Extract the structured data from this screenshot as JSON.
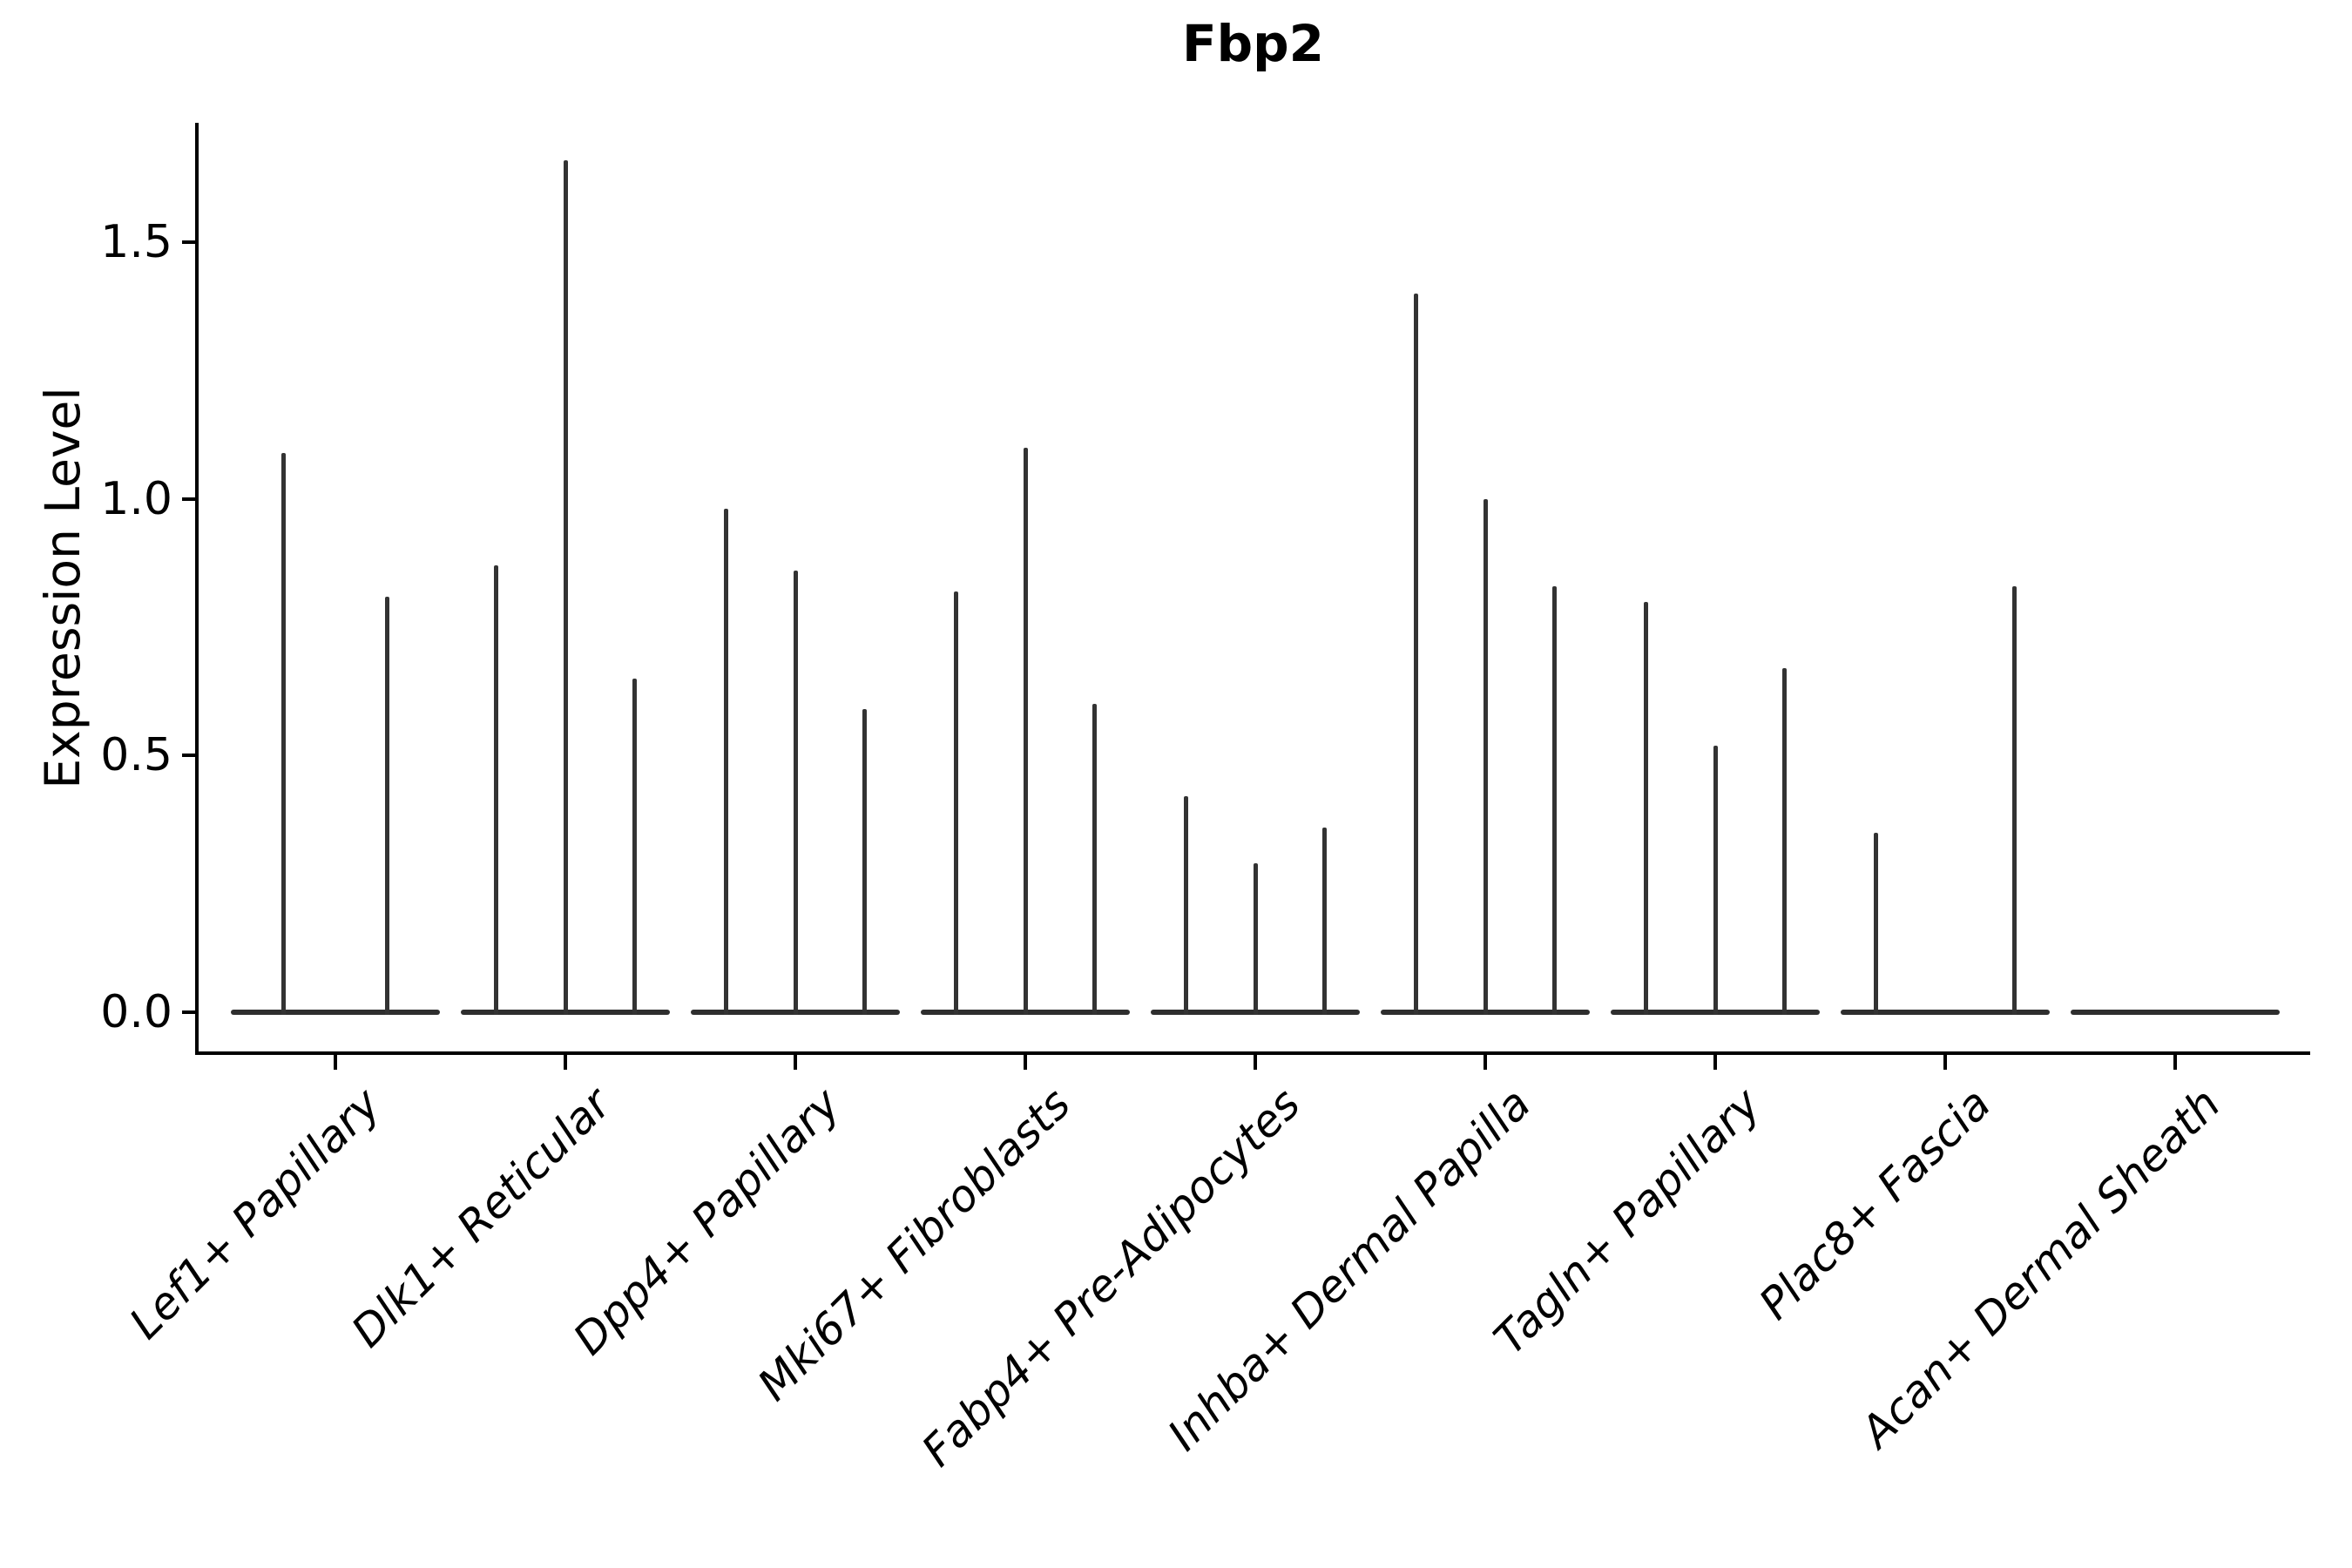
{
  "title": "Fbp2",
  "y_axis": {
    "label": "Expression Level",
    "tick_labels": [
      "0.0",
      "0.5",
      "1.0",
      "1.5"
    ],
    "tick_values": [
      0.0,
      0.5,
      1.0,
      1.5
    ]
  },
  "chart_data": {
    "type": "violin",
    "title": "Fbp2",
    "xlabel": "",
    "ylabel": "Expression Level",
    "ylim": [
      0,
      1.73
    ],
    "y_ticks": [
      0.0,
      0.5,
      1.0,
      1.5
    ],
    "grid": false,
    "legend": "none",
    "style_note": "collapsed single-cell expression violins: wide flat base at 0 with thin density spikes up to the max expressed value",
    "line_color": "#333333",
    "axis_color": "#000000",
    "categories": [
      "Lef1+ Papillary",
      "Dlk1+ Reticular",
      "Dpp4+ Papillary",
      "Mki67+ Fibroblasts",
      "Fabp4+ Pre-Adipocytes",
      "Inhba+ Dermal Papilla",
      "Tagln+ Papillary",
      "Plac8+ Fascia",
      "Acan+ Dermal Sheath"
    ],
    "series": [
      {
        "name": "Lef1+ Papillary",
        "violins": [
          {
            "offset": -0.225,
            "max": 1.09
          },
          {
            "offset": 0.225,
            "max": 0.81
          }
        ]
      },
      {
        "name": "Dlk1+ Reticular",
        "violins": [
          {
            "offset": -0.3,
            "max": 0.87
          },
          {
            "offset": 0,
            "max": 1.66
          },
          {
            "offset": 0.3,
            "max": 0.65
          }
        ]
      },
      {
        "name": "Dpp4+ Papillary",
        "violins": [
          {
            "offset": -0.3,
            "max": 0.98
          },
          {
            "offset": 0,
            "max": 0.86
          },
          {
            "offset": 0.3,
            "max": 0.59
          }
        ]
      },
      {
        "name": "Mki67+ Fibroblasts",
        "violins": [
          {
            "offset": -0.3,
            "max": 0.82
          },
          {
            "offset": 0,
            "max": 1.1
          },
          {
            "offset": 0.3,
            "max": 0.6
          }
        ]
      },
      {
        "name": "Fabp4+ Pre-Adipocytes",
        "violins": [
          {
            "offset": -0.3,
            "max": 0.42
          },
          {
            "offset": 0,
            "max": 0.29
          },
          {
            "offset": 0.3,
            "max": 0.36
          }
        ]
      },
      {
        "name": "Inhba+ Dermal Papilla",
        "violins": [
          {
            "offset": -0.3,
            "max": 1.4
          },
          {
            "offset": 0,
            "max": 1.0
          },
          {
            "offset": 0.3,
            "max": 0.83
          }
        ]
      },
      {
        "name": "Tagln+ Papillary",
        "violins": [
          {
            "offset": -0.3,
            "max": 0.8
          },
          {
            "offset": 0,
            "max": 0.52
          },
          {
            "offset": 0.3,
            "max": 0.67
          }
        ]
      },
      {
        "name": "Plac8+ Fascia",
        "violins": [
          {
            "offset": -0.3,
            "max": 0.35
          },
          {
            "offset": 0,
            "max": 0.0
          },
          {
            "offset": 0.3,
            "max": 0.83
          }
        ]
      },
      {
        "name": "Acan+ Dermal Sheath",
        "violins": [
          {
            "offset": -0.3,
            "max": 0.0
          },
          {
            "offset": 0,
            "max": 0.0
          },
          {
            "offset": 0.3,
            "max": 0.0
          }
        ]
      }
    ]
  }
}
